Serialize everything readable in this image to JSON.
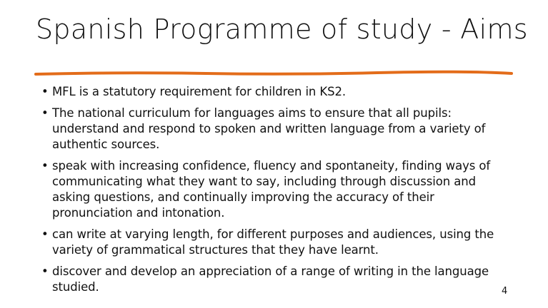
{
  "slide": {
    "title": "Spanish Programme of study - Aims",
    "accent_color": "#e36c1a",
    "bullets": [
      "MFL is a statutory requirement for children in KS2.",
      "The national curriculum for languages aims to ensure that all pupils: understand and respond to spoken and written language from a variety of authentic sources.",
      "speak with increasing confidence, fluency and spontaneity, finding ways of communicating what they want to say, including through discussion and asking questions, and continually improving the accuracy of their pronunciation and intonation.",
      "can write at varying length, for different purposes and audiences, using the variety of grammatical structures that they have learnt.",
      "discover and develop an appreciation of a range of writing in the language studied."
    ],
    "page_number": "4"
  }
}
